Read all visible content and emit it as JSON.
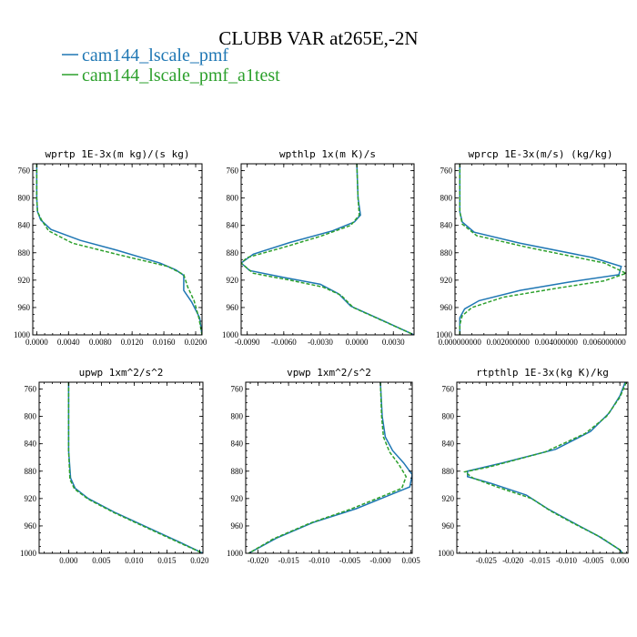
{
  "figure": {
    "title": "CLUBB VAR at265E,-2N",
    "legend": [
      {
        "label": "cam144_lscale_pmf",
        "color": "#1f77b4"
      },
      {
        "label": "cam144_lscale_pmf_a1test",
        "color": "#2ca02c"
      }
    ]
  },
  "chart_data": [
    {
      "type": "line",
      "title": "wprtp  1E-3x(m kg)/(s kg)",
      "xlim": [
        -0.0005,
        0.0208
      ],
      "ylim": [
        1000,
        750
      ],
      "xticks": [
        0.0,
        0.004,
        0.008,
        0.012,
        0.016,
        0.02
      ],
      "xtick_labels": [
        "0.0000",
        "0.0040",
        "0.0080",
        "0.0120",
        "0.0160",
        "0.0200"
      ],
      "yticks": [
        760,
        800,
        840,
        880,
        920,
        960,
        1000
      ],
      "ytick_labels": [
        "760",
        "800",
        "840",
        "880",
        "920",
        "960",
        "1000"
      ],
      "series": [
        {
          "name": "cam144_lscale_pmf",
          "color": "#1f77b4",
          "dash": "",
          "points": [
            [
              0.0,
              750
            ],
            [
              0.0,
              800
            ],
            [
              0.0001,
              820
            ],
            [
              0.0005,
              832
            ],
            [
              0.0018,
              846
            ],
            [
              0.0055,
              862
            ],
            [
              0.01,
              876
            ],
            [
              0.0155,
              895
            ],
            [
              0.0175,
              905
            ],
            [
              0.0185,
              913
            ],
            [
              0.0185,
              935
            ],
            [
              0.0195,
              952
            ],
            [
              0.0205,
              975
            ],
            [
              0.0208,
              1000
            ]
          ]
        },
        {
          "name": "cam144_lscale_pmf_a1test",
          "color": "#2ca02c",
          "dash": "4,2",
          "points": [
            [
              0.0,
              750
            ],
            [
              0.0,
              800
            ],
            [
              0.0001,
              820
            ],
            [
              0.0006,
              832
            ],
            [
              0.0015,
              848
            ],
            [
              0.0045,
              866
            ],
            [
              0.01,
              882
            ],
            [
              0.0165,
              900
            ],
            [
              0.0185,
              912
            ],
            [
              0.019,
              930
            ],
            [
              0.0198,
              950
            ],
            [
              0.0204,
              975
            ],
            [
              0.0208,
              1000
            ]
          ]
        }
      ]
    },
    {
      "type": "line",
      "title": "wpthlp  1x(m K)/s",
      "xlim": [
        -0.0095,
        0.0047
      ],
      "ylim": [
        1000,
        750
      ],
      "xticks": [
        -0.009,
        -0.006,
        -0.003,
        0.0,
        0.003
      ],
      "xtick_labels": [
        "-0.0090",
        "-0.0060",
        "-0.0030",
        "0.0000",
        "0.0030"
      ],
      "yticks": [
        760,
        800,
        840,
        880,
        920,
        960,
        1000
      ],
      "ytick_labels": [
        "760",
        "800",
        "840",
        "880",
        "920",
        "960",
        "1000"
      ],
      "series": [
        {
          "name": "cam144_lscale_pmf",
          "color": "#1f77b4",
          "dash": "",
          "points": [
            [
              0.0,
              750
            ],
            [
              0.0001,
              800
            ],
            [
              0.0003,
              825
            ],
            [
              -0.0002,
              835
            ],
            [
              -0.002,
              848
            ],
            [
              -0.0055,
              865
            ],
            [
              -0.0085,
              882
            ],
            [
              -0.0095,
              895
            ],
            [
              -0.0088,
              906
            ],
            [
              -0.006,
              916
            ],
            [
              -0.003,
              926
            ],
            [
              -0.0015,
              940
            ],
            [
              -0.0005,
              958
            ],
            [
              0.002,
              978
            ],
            [
              0.0047,
              1000
            ]
          ]
        },
        {
          "name": "cam144_lscale_pmf_a1test",
          "color": "#2ca02c",
          "dash": "4,2",
          "points": [
            [
              0.0,
              750
            ],
            [
              0.0001,
              800
            ],
            [
              0.0002,
              825
            ],
            [
              -0.0005,
              840
            ],
            [
              -0.003,
              856
            ],
            [
              -0.006,
              872
            ],
            [
              -0.009,
              887
            ],
            [
              -0.0095,
              895
            ],
            [
              -0.0085,
              910
            ],
            [
              -0.0055,
              920
            ],
            [
              -0.0028,
              930
            ],
            [
              -0.0013,
              942
            ],
            [
              -0.0003,
              960
            ],
            [
              0.0022,
              980
            ],
            [
              0.0047,
              1000
            ]
          ]
        }
      ]
    },
    {
      "type": "line",
      "title": "wprcp  1E-3x(m/s) (kg/kg)",
      "xlim": [
        -0.0002,
        0.0069
      ],
      "ylim": [
        1000,
        750
      ],
      "xticks": [
        0.0,
        0.002,
        0.004,
        0.006
      ],
      "xtick_labels": [
        "0.000000000",
        "0.002000000",
        "0.004000000",
        "0.006000000"
      ],
      "yticks": [
        760,
        800,
        840,
        880,
        920,
        960,
        1000
      ],
      "ytick_labels": [
        "760",
        "800",
        "840",
        "880",
        "920",
        "960",
        "1000"
      ],
      "series": [
        {
          "name": "cam144_lscale_pmf",
          "color": "#1f77b4",
          "dash": "",
          "points": [
            [
              0.0,
              750
            ],
            [
              0.0,
              820
            ],
            [
              0.0001,
              835
            ],
            [
              0.0006,
              850
            ],
            [
              0.0025,
              866
            ],
            [
              0.0055,
              887
            ],
            [
              0.0067,
              900
            ],
            [
              0.0066,
              912
            ],
            [
              0.0045,
              923
            ],
            [
              0.0025,
              935
            ],
            [
              0.0008,
              950
            ],
            [
              0.0002,
              962
            ],
            [
              0.0,
              975
            ],
            [
              0.0,
              1000
            ]
          ]
        },
        {
          "name": "cam144_lscale_pmf_a1test",
          "color": "#2ca02c",
          "dash": "4,2",
          "points": [
            [
              0.0,
              750
            ],
            [
              0.0,
              820
            ],
            [
              0.0001,
              838
            ],
            [
              0.0007,
              855
            ],
            [
              0.0028,
              872
            ],
            [
              0.006,
              895
            ],
            [
              0.0069,
              910
            ],
            [
              0.006,
              921
            ],
            [
              0.004,
              932
            ],
            [
              0.0018,
              945
            ],
            [
              0.0005,
              960
            ],
            [
              0.0001,
              972
            ],
            [
              0.0,
              985
            ],
            [
              0.0,
              1000
            ]
          ]
        }
      ]
    },
    {
      "type": "line",
      "title": "upwp  1xm^2/s^2",
      "xlim": [
        -0.0045,
        0.0205
      ],
      "ylim": [
        1000,
        750
      ],
      "xticks": [
        0.0,
        0.005,
        0.01,
        0.015,
        0.02
      ],
      "xtick_labels": [
        "0.000",
        "0.005",
        "0.010",
        "0.015",
        "0.020"
      ],
      "yticks": [
        760,
        800,
        840,
        880,
        920,
        960,
        1000
      ],
      "ytick_labels": [
        "760",
        "800",
        "840",
        "880",
        "920",
        "960",
        "1000"
      ],
      "series": [
        {
          "name": "cam144_lscale_pmf",
          "color": "#1f77b4",
          "dash": "",
          "points": [
            [
              0.0,
              750
            ],
            [
              0.0,
              850
            ],
            [
              0.0003,
              890
            ],
            [
              0.001,
              905
            ],
            [
              0.003,
              920
            ],
            [
              0.007,
              940
            ],
            [
              0.012,
              962
            ],
            [
              0.017,
              984
            ],
            [
              0.0205,
              1000
            ]
          ]
        },
        {
          "name": "cam144_lscale_pmf_a1test",
          "color": "#2ca02c",
          "dash": "4,2",
          "points": [
            [
              0.0,
              750
            ],
            [
              0.0,
              850
            ],
            [
              0.0002,
              892
            ],
            [
              0.0009,
              906
            ],
            [
              0.003,
              921
            ],
            [
              0.007,
              941
            ],
            [
              0.012,
              963
            ],
            [
              0.017,
              985
            ],
            [
              0.0205,
              1000
            ]
          ]
        }
      ]
    },
    {
      "type": "line",
      "title": "vpwp  1xm^2/s^2",
      "xlim": [
        -0.022,
        0.0052
      ],
      "ylim": [
        1000,
        750
      ],
      "xticks": [
        -0.02,
        -0.015,
        -0.01,
        -0.005,
        0.0,
        0.005
      ],
      "xtick_labels": [
        "-0.020",
        "-0.015",
        "-0.010",
        "-0.005",
        "-0.000",
        "0.005"
      ],
      "yticks": [
        760,
        800,
        840,
        880,
        920,
        960,
        1000
      ],
      "ytick_labels": [
        "760",
        "800",
        "840",
        "880",
        "920",
        "960",
        "1000"
      ],
      "series": [
        {
          "name": "cam144_lscale_pmf",
          "color": "#1f77b4",
          "dash": "",
          "points": [
            [
              0.0,
              750
            ],
            [
              0.0003,
              800
            ],
            [
              0.0008,
              830
            ],
            [
              0.002,
              850
            ],
            [
              0.0038,
              868
            ],
            [
              0.0052,
              885
            ],
            [
              0.0048,
              903
            ],
            [
              0.0015,
              915
            ],
            [
              -0.004,
              935
            ],
            [
              -0.011,
              955
            ],
            [
              -0.017,
              978
            ],
            [
              -0.0215,
              1000
            ]
          ]
        },
        {
          "name": "cam144_lscale_pmf_a1test",
          "color": "#2ca02c",
          "dash": "4,2",
          "points": [
            [
              0.0,
              750
            ],
            [
              0.0002,
              800
            ],
            [
              0.0005,
              830
            ],
            [
              0.0015,
              852
            ],
            [
              0.003,
              870
            ],
            [
              0.0042,
              888
            ],
            [
              0.0035,
              905
            ],
            [
              0.0,
              918
            ],
            [
              -0.005,
              936
            ],
            [
              -0.0115,
              956
            ],
            [
              -0.0175,
              979
            ],
            [
              -0.0215,
              1000
            ]
          ]
        }
      ]
    },
    {
      "type": "line",
      "title": "rtpthlp  1E-3x(kg K)/kg",
      "xlim": [
        -0.0305,
        0.0015
      ],
      "ylim": [
        1000,
        750
      ],
      "xticks": [
        -0.025,
        -0.02,
        -0.015,
        -0.01,
        -0.005,
        0.0
      ],
      "xtick_labels": [
        "-0.025",
        "-0.020",
        "-0.015",
        "-0.010",
        "-0.005",
        "0.000"
      ],
      "yticks": [
        760,
        800,
        840,
        880,
        920,
        960,
        1000
      ],
      "ytick_labels": [
        "760",
        "800",
        "840",
        "880",
        "920",
        "960",
        "1000"
      ],
      "series": [
        {
          "name": "cam144_lscale_pmf",
          "color": "#1f77b4",
          "dash": "",
          "points": [
            [
              0.001,
              750
            ],
            [
              0.0,
              770
            ],
            [
              -0.002,
              795
            ],
            [
              -0.0055,
              822
            ],
            [
              -0.012,
              848
            ],
            [
              -0.022,
              868
            ],
            [
              -0.0285,
              880
            ],
            [
              -0.0285,
              888
            ],
            [
              -0.024,
              898
            ],
            [
              -0.0175,
              915
            ],
            [
              -0.0135,
              935
            ],
            [
              -0.0095,
              952
            ],
            [
              -0.004,
              975
            ],
            [
              0.0,
              995
            ],
            [
              0.0005,
              1000
            ]
          ]
        },
        {
          "name": "cam144_lscale_pmf_a1test",
          "color": "#2ca02c",
          "dash": "4,2",
          "points": [
            [
              0.0012,
              750
            ],
            [
              0.0,
              772
            ],
            [
              -0.0025,
              800
            ],
            [
              -0.0065,
              825
            ],
            [
              -0.014,
              852
            ],
            [
              -0.0245,
              874
            ],
            [
              -0.029,
              881
            ],
            [
              -0.0275,
              890
            ],
            [
              -0.023,
              903
            ],
            [
              -0.0165,
              920
            ],
            [
              -0.013,
              938
            ],
            [
              -0.009,
              955
            ],
            [
              -0.0035,
              977
            ],
            [
              0.0,
              995
            ],
            [
              0.0005,
              1000
            ]
          ]
        }
      ]
    }
  ]
}
